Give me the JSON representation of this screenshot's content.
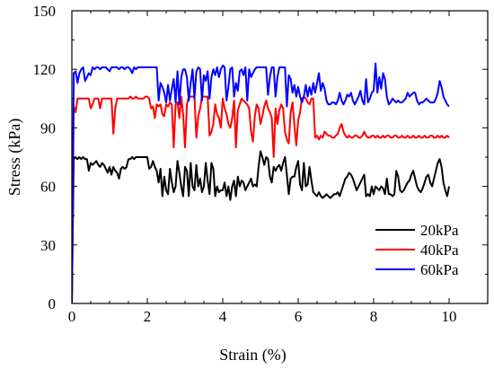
{
  "chart_data": {
    "type": "line",
    "xlabel": "Strain (%)",
    "ylabel": "Stress (kPa)",
    "xlim": [
      0,
      10
    ],
    "ylim": [
      0,
      150
    ],
    "xticks": [
      0,
      2,
      4,
      6,
      8,
      10
    ],
    "yticks": [
      0,
      30,
      60,
      90,
      120,
      150
    ],
    "grid": false,
    "legend_position": "bottom-right",
    "series": [
      {
        "name": "20kPa",
        "color": "#000000",
        "x": [
          0,
          0.05,
          0.1,
          0.15,
          0.2,
          0.25,
          0.3,
          0.35,
          0.4,
          0.45,
          0.5,
          0.55,
          0.6,
          0.65,
          0.7,
          0.75,
          0.8,
          0.85,
          0.9,
          0.95,
          1.0,
          1.05,
          1.1,
          1.15,
          1.2,
          1.25,
          1.3,
          1.35,
          1.4,
          1.45,
          1.5,
          1.55,
          1.6,
          1.65,
          1.7,
          1.75,
          1.8,
          1.85,
          1.9,
          1.95,
          2.0,
          2.05,
          2.1,
          2.15,
          2.2,
          2.25,
          2.3,
          2.35,
          2.4,
          2.45,
          2.5,
          2.55,
          2.6,
          2.65,
          2.7,
          2.75,
          2.8,
          2.85,
          2.9,
          2.95,
          3.0,
          3.05,
          3.1,
          3.15,
          3.2,
          3.25,
          3.3,
          3.35,
          3.4,
          3.45,
          3.5,
          3.55,
          3.6,
          3.65,
          3.7,
          3.75,
          3.8,
          3.85,
          3.9,
          3.95,
          4.0,
          4.05,
          4.1,
          4.15,
          4.2,
          4.25,
          4.3,
          4.35,
          4.4,
          4.45,
          4.5,
          4.55,
          4.6,
          4.65,
          4.7,
          4.75,
          4.8,
          4.85,
          4.9,
          4.95,
          5.0,
          5.05,
          5.1,
          5.15,
          5.2,
          5.25,
          5.3,
          5.35,
          5.4,
          5.45,
          5.5,
          5.55,
          5.6,
          5.65,
          5.7,
          5.75,
          5.8,
          5.85,
          5.9,
          5.95,
          6.0,
          6.05,
          6.1,
          6.15,
          6.2,
          6.25,
          6.3,
          6.35,
          6.4,
          6.45,
          6.5,
          6.55,
          6.6,
          6.65,
          6.7,
          6.75,
          6.8,
          6.85,
          6.9,
          6.95,
          7.0,
          7.05,
          7.1,
          7.15,
          7.2,
          7.25,
          7.3,
          7.35,
          7.4,
          7.45,
          7.5,
          7.55,
          7.6,
          7.65,
          7.7,
          7.75,
          7.8,
          7.85,
          7.9,
          7.95,
          8.0,
          8.05,
          8.1,
          8.15,
          8.2,
          8.25,
          8.3,
          8.35,
          8.4,
          8.45,
          8.5,
          8.55,
          8.6,
          8.65,
          8.7,
          8.75,
          8.8,
          8.85,
          8.9,
          8.95,
          9.0,
          9.05,
          9.1,
          9.15,
          9.2,
          9.25,
          9.3,
          9.35,
          9.4,
          9.45,
          9.5,
          9.55,
          9.6,
          9.65,
          9.7,
          9.75,
          9.8,
          9.85,
          9.9,
          9.95,
          10.0
        ],
        "values": [
          0,
          74,
          75,
          74,
          75,
          74,
          75,
          74,
          74,
          68,
          72,
          71,
          72,
          73,
          71,
          70,
          72,
          71,
          69,
          67,
          70,
          66,
          70,
          68,
          67,
          64,
          69,
          70,
          69,
          70,
          74,
          74,
          75,
          74,
          75,
          75,
          75,
          75,
          75,
          75,
          75,
          69,
          70,
          73,
          70,
          68,
          62,
          69,
          55,
          65,
          58,
          56,
          69,
          62,
          57,
          60,
          73,
          67,
          60,
          55,
          70,
          68,
          55,
          72,
          60,
          58,
          71,
          60,
          64,
          57,
          60,
          72,
          63,
          56,
          72,
          69,
          55,
          60,
          57,
          58,
          58,
          62,
          55,
          60,
          53,
          60,
          63,
          55,
          65,
          60,
          63,
          62,
          58,
          60,
          62,
          64,
          60,
          61,
          60,
          70,
          78,
          75,
          71,
          75,
          74,
          65,
          62,
          70,
          68,
          70,
          71,
          68,
          72,
          75,
          66,
          56,
          64,
          65,
          65,
          70,
          73,
          61,
          58,
          72,
          60,
          61,
          70,
          63,
          57,
          56,
          55,
          57,
          55,
          54,
          55,
          56,
          55,
          54,
          55,
          56,
          56,
          57,
          55,
          58,
          61,
          64,
          65,
          67,
          66,
          64,
          61,
          58,
          60,
          62,
          64,
          66,
          55,
          56,
          55,
          60,
          56,
          60,
          59,
          58,
          60,
          59,
          56,
          64,
          56,
          56,
          55,
          56,
          68,
          65,
          58,
          57,
          58,
          60,
          62,
          63,
          66,
          68,
          64,
          60,
          58,
          57,
          59,
          62,
          65,
          66,
          62,
          60,
          64,
          68,
          72,
          74,
          70,
          62,
          58,
          55,
          60
        ]
      },
      {
        "name": "40kPa",
        "color": "#ff0000",
        "x": [
          0,
          0.05,
          0.1,
          0.15,
          0.2,
          0.25,
          0.3,
          0.35,
          0.4,
          0.45,
          0.5,
          0.55,
          0.6,
          0.65,
          0.7,
          0.75,
          0.8,
          0.85,
          0.9,
          0.95,
          1.0,
          1.05,
          1.1,
          1.15,
          1.2,
          1.25,
          1.3,
          1.35,
          1.4,
          1.45,
          1.5,
          1.55,
          1.6,
          1.65,
          1.7,
          1.75,
          1.8,
          1.85,
          1.9,
          1.95,
          2.0,
          2.05,
          2.1,
          2.15,
          2.2,
          2.25,
          2.3,
          2.35,
          2.4,
          2.45,
          2.5,
          2.55,
          2.6,
          2.65,
          2.7,
          2.75,
          2.8,
          2.85,
          2.9,
          2.95,
          3.0,
          3.05,
          3.1,
          3.15,
          3.2,
          3.25,
          3.3,
          3.35,
          3.4,
          3.45,
          3.5,
          3.55,
          3.6,
          3.65,
          3.7,
          3.75,
          3.8,
          3.85,
          3.9,
          3.95,
          4.0,
          4.05,
          4.1,
          4.15,
          4.2,
          4.25,
          4.3,
          4.35,
          4.4,
          4.45,
          4.5,
          4.55,
          4.6,
          4.65,
          4.7,
          4.75,
          4.8,
          4.85,
          4.9,
          4.95,
          5.0,
          5.05,
          5.1,
          5.15,
          5.2,
          5.25,
          5.3,
          5.35,
          5.4,
          5.45,
          5.5,
          5.55,
          5.6,
          5.65,
          5.7,
          5.75,
          5.8,
          5.85,
          5.9,
          5.95,
          6.0,
          6.05,
          6.1,
          6.15,
          6.2,
          6.25,
          6.3,
          6.35,
          6.4,
          6.45,
          6.5,
          6.55,
          6.6,
          6.65,
          6.7,
          6.75,
          6.8,
          6.85,
          6.9,
          6.95,
          7.0,
          7.05,
          7.1,
          7.15,
          7.2,
          7.25,
          7.3,
          7.35,
          7.4,
          7.45,
          7.5,
          7.55,
          7.6,
          7.65,
          7.7,
          7.75,
          7.8,
          7.85,
          7.9,
          7.95,
          8.0,
          8.05,
          8.1,
          8.15,
          8.2,
          8.25,
          8.3,
          8.35,
          8.4,
          8.45,
          8.5,
          8.55,
          8.6,
          8.65,
          8.7,
          8.75,
          8.8,
          8.85,
          8.9,
          8.95,
          9.0,
          9.05,
          9.1,
          9.15,
          9.2,
          9.25,
          9.3,
          9.35,
          9.4,
          9.45,
          9.5,
          9.55,
          9.6,
          9.65,
          9.7,
          9.75,
          9.8,
          9.85,
          9.9,
          9.95,
          10.0
        ],
        "values": [
          0,
          101,
          98,
          105,
          105,
          105,
          105,
          105,
          105,
          105,
          100,
          102,
          105,
          105,
          105,
          100,
          105,
          105,
          105,
          105,
          105,
          105,
          87,
          100,
          105,
          105,
          105,
          105,
          105,
          105,
          105,
          106,
          105,
          105,
          106,
          105,
          105,
          105,
          105,
          106,
          106,
          105,
          100,
          101,
          95,
          102,
          101,
          102,
          97,
          96,
          102,
          101,
          103,
          102,
          80,
          102,
          103,
          95,
          106,
          97,
          80,
          102,
          106,
          106,
          106,
          106,
          85,
          96,
          100,
          106,
          106,
          106,
          106,
          86,
          88,
          92,
          102,
          97,
          95,
          90,
          105,
          100,
          97,
          92,
          90,
          95,
          104,
          80,
          99,
          102,
          105,
          104,
          103,
          102,
          100,
          88,
          83,
          96,
          102,
          100,
          92,
          96,
          101,
          104,
          100,
          98,
          95,
          75,
          100,
          92,
          99,
          102,
          100,
          88,
          84,
          82,
          98,
          103,
          91,
          81,
          94,
          98,
          105,
          106,
          105,
          103,
          102,
          105,
          105,
          85,
          86,
          84,
          86,
          85,
          88,
          87,
          86,
          86,
          85,
          85,
          86,
          87,
          90,
          92,
          88,
          86,
          85,
          86,
          85,
          85,
          86,
          86,
          85,
          85,
          86,
          88,
          86,
          85,
          85,
          86,
          86,
          85,
          86,
          85,
          85,
          86,
          85,
          86,
          86,
          85,
          85,
          86,
          86,
          85,
          85,
          86,
          85,
          85,
          86,
          85,
          85,
          86,
          85,
          85,
          86,
          85,
          85,
          86,
          85,
          85,
          86,
          86,
          85,
          85,
          86,
          85,
          86,
          85,
          85,
          86,
          85
        ]
      },
      {
        "name": "60kPa",
        "color": "#0000ff",
        "x": [
          0,
          0.05,
          0.1,
          0.15,
          0.2,
          0.25,
          0.3,
          0.35,
          0.4,
          0.45,
          0.5,
          0.55,
          0.6,
          0.65,
          0.7,
          0.75,
          0.8,
          0.85,
          0.9,
          0.95,
          1.0,
          1.05,
          1.1,
          1.15,
          1.2,
          1.25,
          1.3,
          1.35,
          1.4,
          1.45,
          1.5,
          1.55,
          1.6,
          1.65,
          1.7,
          1.75,
          1.8,
          1.85,
          1.9,
          1.95,
          2.0,
          2.05,
          2.1,
          2.15,
          2.2,
          2.25,
          2.3,
          2.35,
          2.4,
          2.45,
          2.5,
          2.55,
          2.6,
          2.65,
          2.7,
          2.75,
          2.8,
          2.85,
          2.9,
          2.95,
          3.0,
          3.05,
          3.1,
          3.15,
          3.2,
          3.25,
          3.3,
          3.35,
          3.4,
          3.45,
          3.5,
          3.55,
          3.6,
          3.65,
          3.7,
          3.75,
          3.8,
          3.85,
          3.9,
          3.95,
          4.0,
          4.05,
          4.1,
          4.15,
          4.2,
          4.25,
          4.3,
          4.35,
          4.4,
          4.45,
          4.5,
          4.55,
          4.6,
          4.65,
          4.7,
          4.75,
          4.8,
          4.85,
          4.9,
          4.95,
          5.0,
          5.05,
          5.1,
          5.15,
          5.2,
          5.25,
          5.3,
          5.35,
          5.4,
          5.45,
          5.5,
          5.55,
          5.6,
          5.65,
          5.7,
          5.75,
          5.8,
          5.85,
          5.9,
          5.95,
          6.0,
          6.05,
          6.1,
          6.15,
          6.2,
          6.25,
          6.3,
          6.35,
          6.4,
          6.45,
          6.5,
          6.55,
          6.6,
          6.65,
          6.7,
          6.75,
          6.8,
          6.85,
          6.9,
          6.95,
          7.0,
          7.05,
          7.1,
          7.15,
          7.2,
          7.25,
          7.3,
          7.35,
          7.4,
          7.45,
          7.5,
          7.55,
          7.6,
          7.65,
          7.7,
          7.75,
          7.8,
          7.85,
          7.9,
          7.95,
          8.0,
          8.05,
          8.1,
          8.15,
          8.2,
          8.25,
          8.3,
          8.35,
          8.4,
          8.45,
          8.5,
          8.55,
          8.6,
          8.65,
          8.7,
          8.75,
          8.8,
          8.85,
          8.9,
          8.95,
          9.0,
          9.05,
          9.1,
          9.15,
          9.2,
          9.25,
          9.3,
          9.35,
          9.4,
          9.45,
          9.5,
          9.55,
          9.6,
          9.65,
          9.7,
          9.75,
          9.8,
          9.85,
          9.9,
          9.95,
          10.0
        ],
        "values": [
          0,
          118,
          119,
          113,
          118,
          120,
          121,
          114,
          116,
          118,
          117,
          121,
          120,
          121,
          121,
          120,
          121,
          121,
          121,
          120,
          119,
          121,
          121,
          121,
          121,
          120,
          121,
          121,
          120,
          121,
          121,
          120,
          118,
          121,
          120,
          121,
          121,
          121,
          121,
          121,
          121,
          121,
          121,
          121,
          121,
          121,
          104,
          113,
          111,
          108,
          103,
          112,
          104,
          110,
          115,
          103,
          119,
          102,
          116,
          120,
          120,
          116,
          104,
          113,
          120,
          105,
          119,
          121,
          120,
          104,
          117,
          114,
          119,
          105,
          116,
          120,
          117,
          121,
          116,
          120,
          122,
          121,
          104,
          111,
          120,
          121,
          106,
          113,
          109,
          119,
          120,
          117,
          121,
          104,
          120,
          116,
          118,
          120,
          121,
          121,
          121,
          121,
          121,
          121,
          107,
          116,
          121,
          121,
          106,
          116,
          121,
          121,
          121,
          121,
          101,
          117,
          115,
          108,
          112,
          106,
          111,
          106,
          103,
          106,
          112,
          106,
          111,
          107,
          113,
          108,
          113,
          118,
          109,
          113,
          110,
          104,
          102,
          102,
          103,
          103,
          102,
          104,
          108,
          104,
          102,
          104,
          107,
          106,
          108,
          104,
          102,
          104,
          106,
          109,
          104,
          102,
          115,
          103,
          105,
          108,
          109,
          123,
          108,
          116,
          110,
          118,
          115,
          106,
          102,
          103,
          105,
          104,
          103,
          104,
          103,
          103,
          104,
          105,
          108,
          106,
          107,
          108,
          108,
          104,
          102,
          103,
          103,
          104,
          105,
          104,
          103,
          103,
          103,
          105,
          108,
          114,
          111,
          106,
          104,
          102,
          101
        ]
      }
    ]
  }
}
